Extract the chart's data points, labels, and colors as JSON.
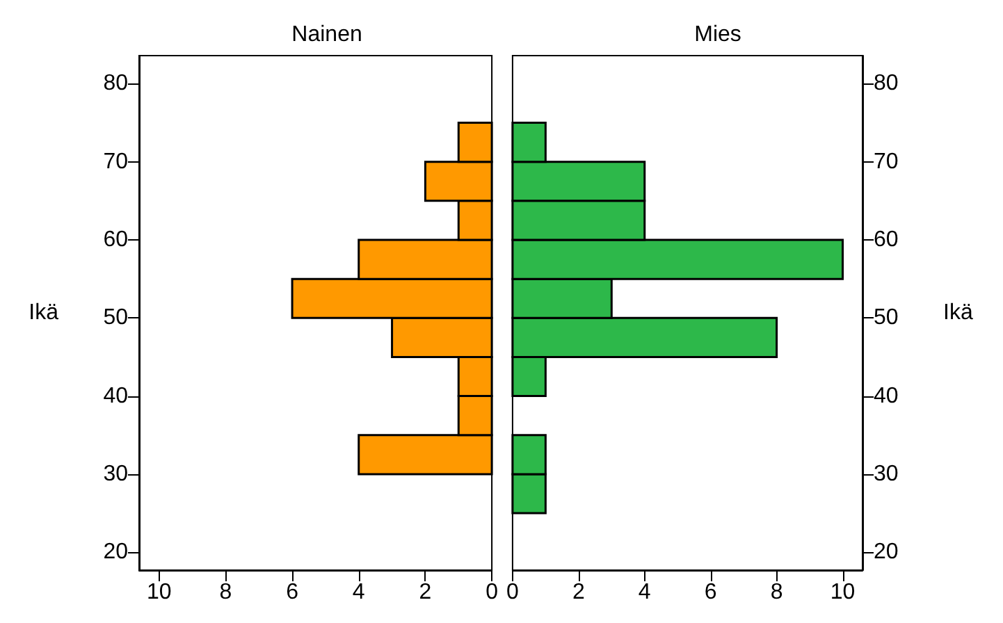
{
  "chart_data": [
    {
      "type": "histogram",
      "orientation": "horizontal",
      "title": "Nainen",
      "ylabel": "Ikä",
      "bins": [
        25,
        30,
        35,
        40,
        45,
        50,
        55,
        60,
        65,
        70,
        75
      ],
      "values": [
        0,
        4,
        1,
        1,
        3,
        6,
        4,
        1,
        2,
        1
      ],
      "color": "#ff9900",
      "xlim": [
        10.6,
        0
      ],
      "xticks": [
        10,
        8,
        6,
        4,
        2,
        0
      ],
      "ylim": [
        17.7,
        83.6
      ],
      "yticks": [
        20,
        30,
        40,
        50,
        60,
        70,
        80
      ]
    },
    {
      "type": "histogram",
      "orientation": "horizontal",
      "title": "Mies",
      "ylabel": "Ikä",
      "bins": [
        25,
        30,
        35,
        40,
        45,
        50,
        55,
        60,
        65,
        70,
        75
      ],
      "values": [
        1,
        1,
        0,
        1,
        8,
        3,
        10,
        4,
        4,
        1
      ],
      "color": "#2db84a",
      "xlim": [
        0,
        10.6
      ],
      "xticks": [
        0,
        2,
        4,
        6,
        8,
        10
      ],
      "ylim": [
        17.7,
        83.6
      ],
      "yticks": [
        20,
        30,
        40,
        50,
        60,
        70,
        80
      ]
    }
  ]
}
